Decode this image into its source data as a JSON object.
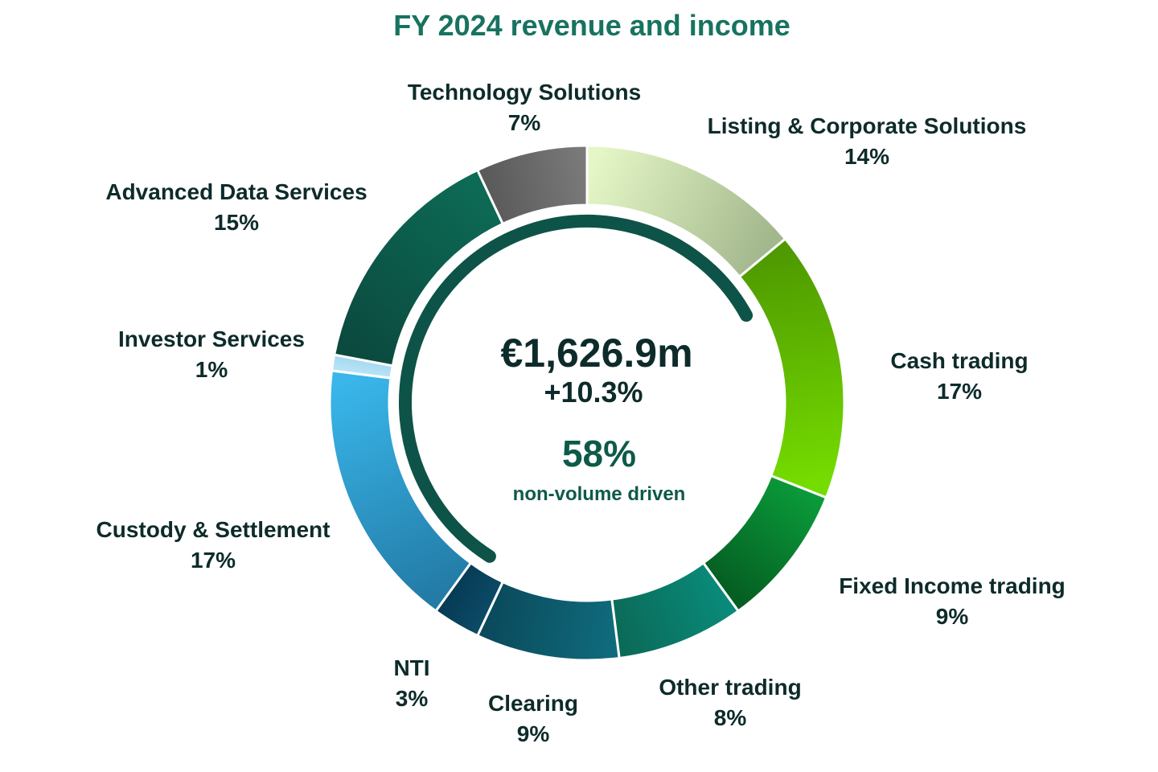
{
  "chart_data": {
    "type": "pie",
    "title": "FY 2024 revenue and income",
    "center": {
      "total": "€1,626.9m",
      "growth": "+10.3%",
      "share": "58%",
      "share_label": "non-volume driven",
      "non_volume_share": 58
    },
    "slices": [
      {
        "name": "Listing & Corporate Solutions",
        "value": 14,
        "label": "14%",
        "colors": [
          "#e5f7c6",
          "#a3b78d"
        ]
      },
      {
        "name": "Cash trading",
        "value": 17,
        "label": "17%",
        "colors": [
          "#4f9a00",
          "#75dc00"
        ]
      },
      {
        "name": "Fixed Income trading",
        "value": 9,
        "label": "9%",
        "colors": [
          "#0a9a3a",
          "#055e22"
        ]
      },
      {
        "name": "Other trading",
        "value": 8,
        "label": "8%",
        "colors": [
          "#0a8a7a",
          "#0b6a58"
        ]
      },
      {
        "name": "Clearing",
        "value": 9,
        "label": "9%",
        "colors": [
          "#0f6b7c",
          "#0a4a5c"
        ]
      },
      {
        "name": "NTI",
        "value": 3,
        "label": "3%",
        "colors": [
          "#0b4a66",
          "#063b55"
        ]
      },
      {
        "name": "Custody & Settlement",
        "value": 17,
        "label": "17%",
        "colors": [
          "#237ba6",
          "#39b6ea"
        ]
      },
      {
        "name": "Investor Services",
        "value": 1,
        "label": "1%",
        "colors": [
          "#b9e4f8",
          "#a6d9f0"
        ]
      },
      {
        "name": "Advanced Data Services",
        "value": 15,
        "label": "15%",
        "colors": [
          "#0b4a3e",
          "#0d6a55"
        ]
      },
      {
        "name": "Technology Solutions",
        "value": 7,
        "label": "7%",
        "colors": [
          "#5a5a5a",
          "#7a7a7a"
        ]
      }
    ],
    "inner_arc_color": "#0e5347",
    "separator_color": "#ffffff"
  }
}
